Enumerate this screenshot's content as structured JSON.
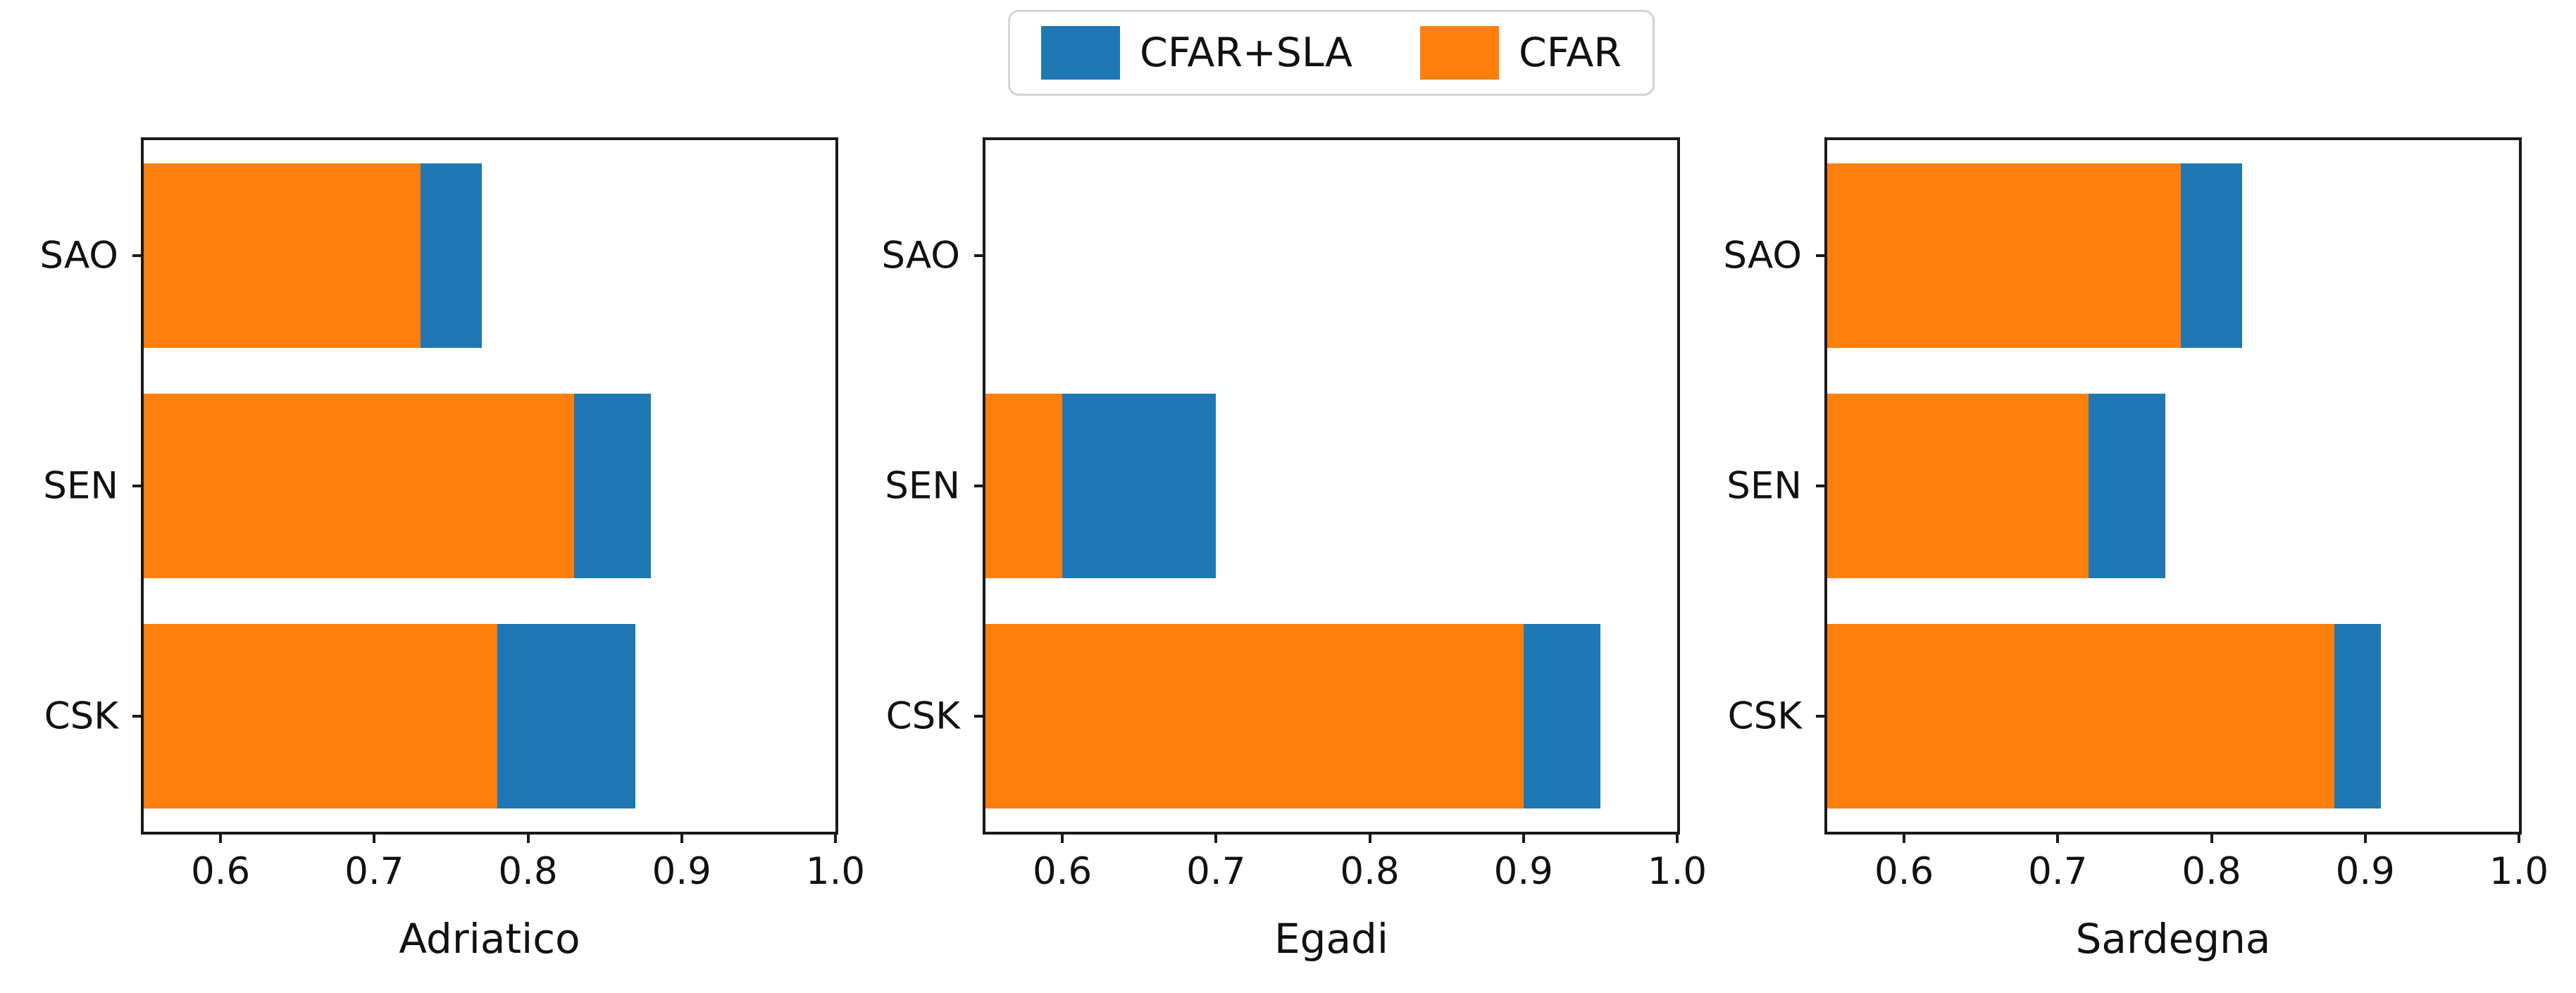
{
  "legend": {
    "items": [
      {
        "label": "CFAR+SLA",
        "color": "#1f77b4"
      },
      {
        "label": "CFAR",
        "color": "#ff7f0e"
      }
    ]
  },
  "colors": {
    "cfar_sla_blue": "#1f77b4",
    "cfar_orange": "#ff7f0e",
    "axis": "#1a1a1a",
    "background": "#ffffff"
  },
  "chart_data": [
    {
      "type": "bar",
      "orientation": "horizontal",
      "xlabel": "Adriatico",
      "categories": [
        "SAO",
        "SEN",
        "CSK"
      ],
      "series": [
        {
          "name": "CFAR+SLA",
          "color": "#1f77b4",
          "values": [
            0.77,
            0.88,
            0.87
          ]
        },
        {
          "name": "CFAR",
          "color": "#ff7f0e",
          "values": [
            0.73,
            0.83,
            0.78
          ]
        }
      ],
      "xlim": [
        0.55,
        1.0
      ],
      "xticks": [
        0.6,
        0.7,
        0.8,
        0.9,
        1.0
      ],
      "xtick_labels": [
        "0.6",
        "0.7",
        "0.8",
        "0.9",
        "1.0"
      ],
      "grid": false,
      "legend_position": "figure-top-center"
    },
    {
      "type": "bar",
      "orientation": "horizontal",
      "xlabel": "Egadi",
      "categories": [
        "SAO",
        "SEN",
        "CSK"
      ],
      "series": [
        {
          "name": "CFAR+SLA",
          "color": "#1f77b4",
          "values": [
            null,
            0.7,
            0.95
          ]
        },
        {
          "name": "CFAR",
          "color": "#ff7f0e",
          "values": [
            null,
            0.6,
            0.9
          ]
        }
      ],
      "xlim": [
        0.55,
        1.0
      ],
      "xticks": [
        0.6,
        0.7,
        0.8,
        0.9,
        1.0
      ],
      "xtick_labels": [
        "0.6",
        "0.7",
        "0.8",
        "0.9",
        "1.0"
      ],
      "grid": false
    },
    {
      "type": "bar",
      "orientation": "horizontal",
      "xlabel": "Sardegna",
      "categories": [
        "SAO",
        "SEN",
        "CSK"
      ],
      "series": [
        {
          "name": "CFAR+SLA",
          "color": "#1f77b4",
          "values": [
            0.82,
            0.77,
            0.91
          ]
        },
        {
          "name": "CFAR",
          "color": "#ff7f0e",
          "values": [
            0.78,
            0.72,
            0.88
          ]
        }
      ],
      "xlim": [
        0.55,
        1.0
      ],
      "xticks": [
        0.6,
        0.7,
        0.8,
        0.9,
        1.0
      ],
      "xtick_labels": [
        "0.6",
        "0.7",
        "0.8",
        "0.9",
        "1.0"
      ],
      "grid": false
    }
  ]
}
